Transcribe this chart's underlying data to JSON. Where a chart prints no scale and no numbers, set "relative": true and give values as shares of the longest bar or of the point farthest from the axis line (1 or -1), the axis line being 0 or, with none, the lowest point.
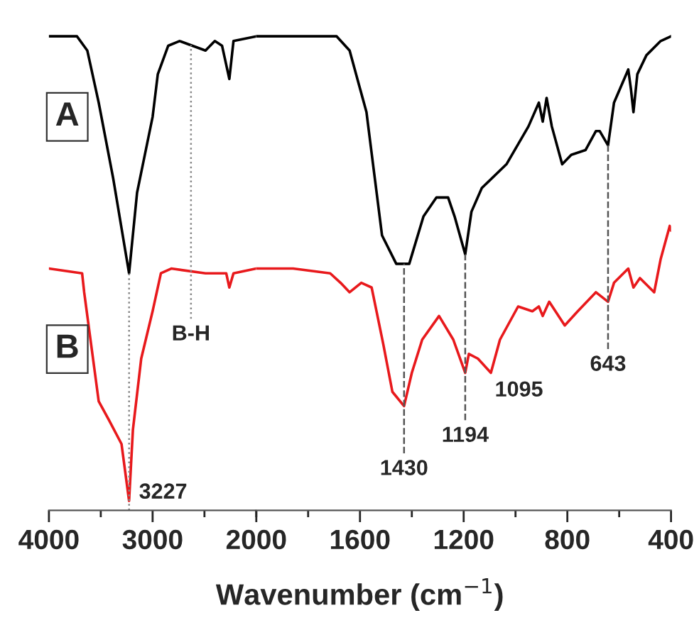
{
  "chart_data": [
    {
      "type": "line",
      "relative": true,
      "xlim": [
        4000,
        2000
      ],
      "xticks": [
        4000,
        3000,
        2000
      ],
      "grid": false,
      "legend": false,
      "marker": "none",
      "line_style": "solid",
      "series": [
        {
          "name": "A",
          "color": "#000000",
          "x": [
            4000,
            3730,
            3630,
            3520,
            3380,
            3227,
            3150,
            3000,
            2950,
            2850,
            2740,
            2490,
            2400,
            2330,
            2260,
            2220,
            2000
          ],
          "values": [
            1.0,
            1.0,
            0.97,
            0.86,
            0.7,
            0.5,
            0.67,
            0.83,
            0.92,
            0.98,
            0.99,
            0.97,
            0.99,
            0.98,
            0.91,
            0.99,
            1.0
          ]
        },
        {
          "name": "B",
          "color": "#e8191c",
          "x": [
            4000,
            3680,
            3660,
            3520,
            3420,
            3300,
            3227,
            3190,
            3110,
            3000,
            2920,
            2820,
            2490,
            2290,
            2260,
            2220,
            2000
          ],
          "values": [
            0.51,
            0.5,
            0.46,
            0.23,
            0.19,
            0.14,
            0.02,
            0.17,
            0.32,
            0.42,
            0.5,
            0.51,
            0.5,
            0.5,
            0.47,
            0.5,
            0.51
          ]
        }
      ],
      "ref_lines": [
        {
          "axis": "x",
          "value": 3227,
          "label": "3227",
          "color": "#888888",
          "line_style": "dotted"
        },
        {
          "axis": "x",
          "value": 2630,
          "label": "B-H",
          "color": "#888888",
          "line_style": "dotted"
        }
      ]
    },
    {
      "type": "line",
      "relative": true,
      "xlabel": "Wavenumber (cm$^{−1}$)",
      "xlim": [
        2000,
        400
      ],
      "xticks": [
        1600,
        1200,
        800,
        400
      ],
      "grid": false,
      "legend": false,
      "marker": "none",
      "line_style": "solid",
      "series": [
        {
          "color": "#000000",
          "x": [
            2000,
            1690,
            1640,
            1575,
            1545,
            1515,
            1460,
            1410,
            1355,
            1305,
            1260,
            1235,
            1194,
            1170,
            1130,
            1035,
            950,
            910,
            895,
            880,
            860,
            820,
            785,
            730,
            690,
            675,
            643,
            620,
            565,
            555,
            545,
            530,
            495,
            440,
            400
          ],
          "values": [
            1.0,
            1.0,
            0.97,
            0.84,
            0.71,
            0.58,
            0.52,
            0.52,
            0.62,
            0.66,
            0.66,
            0.62,
            0.54,
            0.63,
            0.68,
            0.73,
            0.81,
            0.86,
            0.82,
            0.87,
            0.81,
            0.73,
            0.75,
            0.76,
            0.8,
            0.8,
            0.77,
            0.86,
            0.93,
            0.89,
            0.84,
            0.92,
            0.96,
            0.99,
            1.0
          ]
        },
        {
          "color": "#e8191c",
          "x": [
            2000,
            1858,
            1715,
            1675,
            1640,
            1595,
            1555,
            1510,
            1475,
            1430,
            1400,
            1360,
            1295,
            1240,
            1194,
            1180,
            1145,
            1095,
            1060,
            990,
            935,
            910,
            895,
            870,
            810,
            760,
            690,
            643,
            620,
            565,
            545,
            520,
            465,
            440,
            405,
            400
          ],
          "values": [
            0.51,
            0.51,
            0.5,
            0.48,
            0.46,
            0.48,
            0.47,
            0.35,
            0.25,
            0.22,
            0.29,
            0.36,
            0.41,
            0.36,
            0.29,
            0.33,
            0.32,
            0.29,
            0.36,
            0.43,
            0.42,
            0.43,
            0.41,
            0.44,
            0.39,
            0.42,
            0.46,
            0.44,
            0.48,
            0.51,
            0.47,
            0.49,
            0.46,
            0.53,
            0.6,
            0.59
          ]
        }
      ],
      "ref_lines": [
        {
          "axis": "x",
          "value": 1430,
          "label": "1430",
          "color": "#555555",
          "line_style": "dashed"
        },
        {
          "axis": "x",
          "value": 1194,
          "label": "1194",
          "color": "#555555",
          "line_style": "dashed"
        },
        {
          "axis": "x",
          "value": 643,
          "label": "643",
          "color": "#555555",
          "line_style": "dashed"
        }
      ],
      "annotations": [
        {
          "text": "1095",
          "x": 1095,
          "y": 0.29
        }
      ]
    }
  ]
}
